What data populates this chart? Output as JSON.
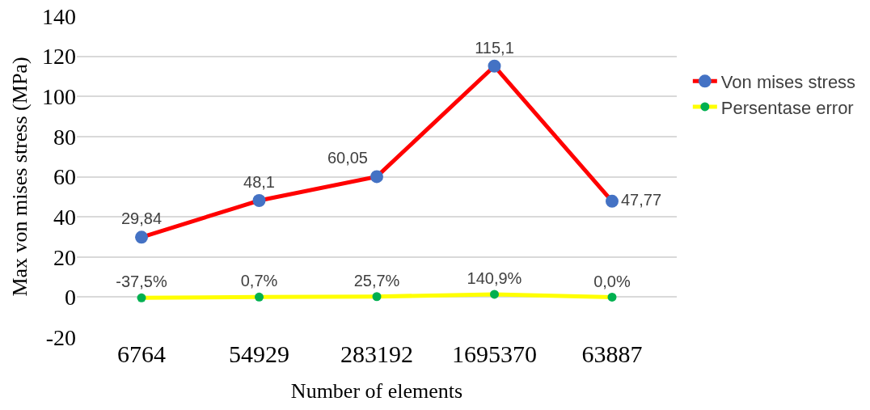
{
  "chart_data": {
    "type": "line",
    "xlabel": "Number of elements",
    "ylabel": "Max von mises stress (MPa)",
    "categories": [
      "6764",
      "54929",
      "283192",
      "1695370",
      "63887"
    ],
    "series": [
      {
        "name": "Von mises stress",
        "color": "#ff0000",
        "colors": [
          "#4472c4",
          "#4472c4",
          "#4472c4",
          "#4472c4",
          "#4472c4"
        ],
        "values": [
          29.84,
          48.1,
          60.05,
          115.1,
          47.77
        ],
        "value_labels": [
          "29,84",
          "48,1",
          "60,05",
          "115,1",
          "47,77"
        ]
      },
      {
        "name": "Persentase error",
        "color": "#ffff00",
        "colors": [
          "#00b050",
          "#00b050",
          "#00b050",
          "#00b050",
          "#00b050"
        ],
        "values": [
          -0.375,
          0.007,
          0.257,
          1.409,
          0.0
        ],
        "value_labels": [
          "-37,5%",
          "0,7%",
          "25,7%",
          "140,9%",
          "0,0%"
        ]
      }
    ],
    "ylim": [
      -20,
      140
    ],
    "yticks": [
      -20,
      0,
      20,
      40,
      60,
      80,
      100,
      120,
      140
    ],
    "grid": "y",
    "legend": "right",
    "marker": "circle",
    "line_style": "solid"
  }
}
